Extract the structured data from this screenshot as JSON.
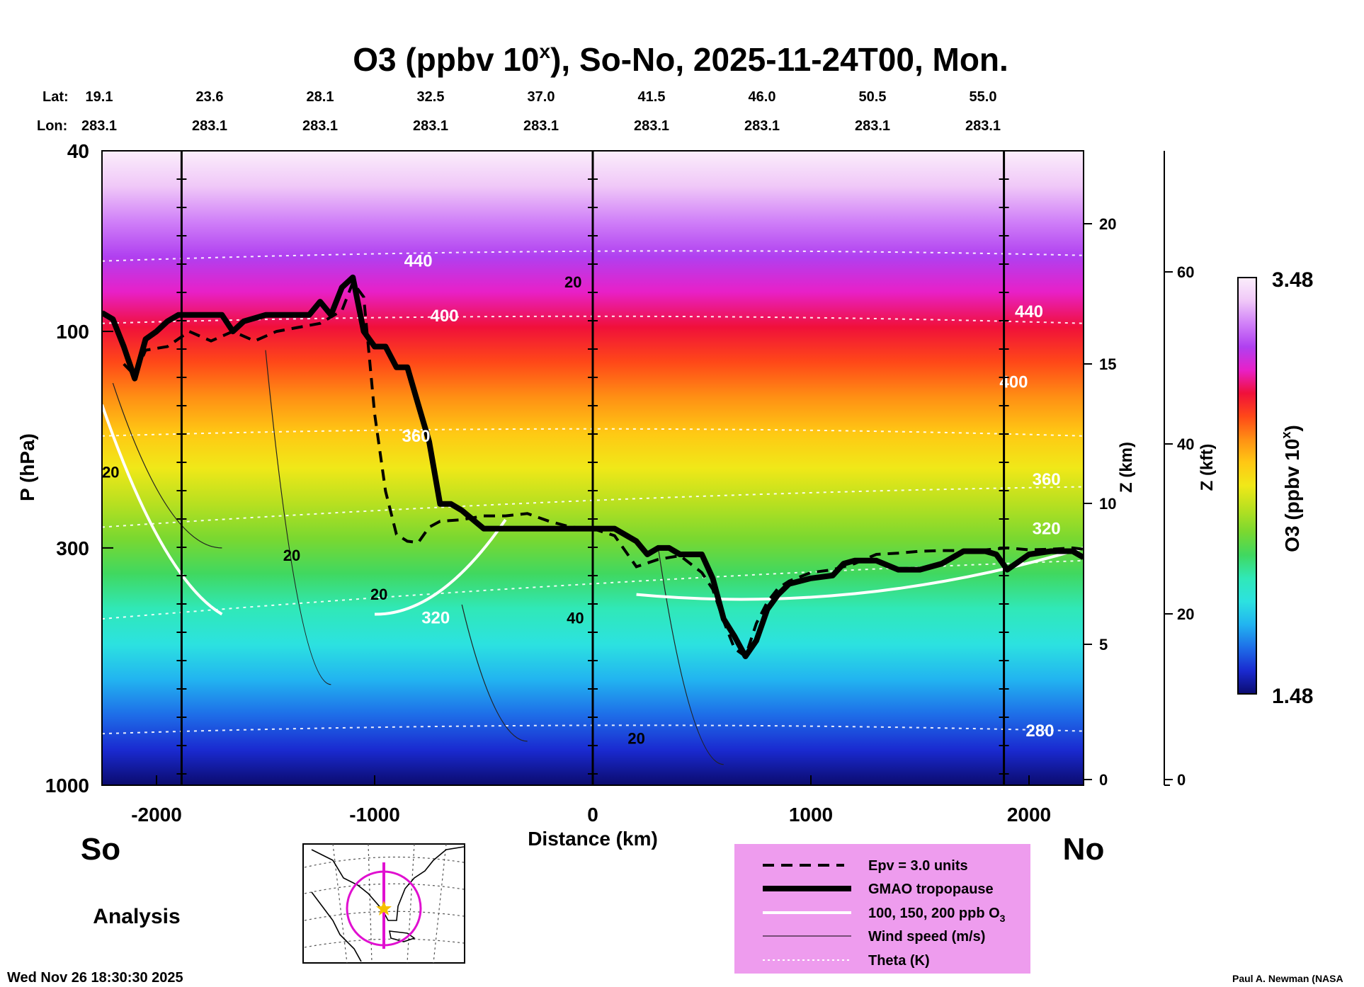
{
  "chart_data": {
    "type": "heatmap",
    "title": "O3 (ppbv 10",
    "title_sup": "x",
    "title_rest": "), So-No, 2025-11-24T00, Mon.",
    "lat_label": "Lat:",
    "lon_label": "Lon:",
    "lats": [
      "19.1",
      "23.6",
      "28.1",
      "32.5",
      "37.0",
      "41.5",
      "46.0",
      "50.5",
      "55.0"
    ],
    "lons": [
      "283.1",
      "283.1",
      "283.1",
      "283.1",
      "283.1",
      "283.1",
      "283.1",
      "283.1",
      "283.1"
    ],
    "xlabel": "Distance (km)",
    "ylabel": "P (hPa)",
    "xlim": [
      -2250,
      2250
    ],
    "x_ticks": [
      -2000,
      -1000,
      0,
      1000,
      2000
    ],
    "x_tick_labels": [
      "-2000",
      "-1000",
      "0",
      "1000",
      "2000"
    ],
    "p_ticks": [
      40,
      100,
      300,
      1000
    ],
    "p_tick_labels": [
      "40",
      "100",
      "300",
      "1000"
    ],
    "z_km_label": "Z (km)",
    "z_km_ticks": [
      "0",
      "5",
      "10",
      "15",
      "20"
    ],
    "z_kft_label": "Z (kft)",
    "z_kft_ticks": [
      "0",
      "20",
      "40",
      "60"
    ],
    "colorbar_label": "O3 (ppbv 10",
    "colorbar_label_sup": "x",
    "colorbar_label_end": ")",
    "colorbar_min": "1.48",
    "colorbar_max": "3.48",
    "colorbar_range": [
      1.48,
      3.48
    ],
    "colorbar_colors": [
      "#0b0b6e",
      "#1a2ad0",
      "#1e6ee8",
      "#22b4f0",
      "#2ce2e0",
      "#30e8b8",
      "#40d860",
      "#7ad830",
      "#b8e020",
      "#f0e818",
      "#ffc814",
      "#ff9014",
      "#ff4818",
      "#f0103a",
      "#e820c8",
      "#b040f0",
      "#d080f8",
      "#f0c8f8",
      "#fbeefb"
    ],
    "south_label": "So",
    "north_label": "No",
    "analysis_label": "Analysis",
    "timestamp": "Wed Nov 26 18:30:30 2025",
    "credit": "Paul A. Newman (NASA",
    "theta_labels": [
      {
        "text": "440",
        "km": -800,
        "p": 72
      },
      {
        "text": "400",
        "km": -680,
        "p": 95
      },
      {
        "text": "360",
        "km": -810,
        "p": 175
      },
      {
        "text": "320",
        "km": -720,
        "p": 440
      },
      {
        "text": "440",
        "km": 2000,
        "p": 93
      },
      {
        "text": "400",
        "km": 1930,
        "p": 133
      },
      {
        "text": "360",
        "km": 2080,
        "p": 218
      },
      {
        "text": "320",
        "km": 2080,
        "p": 280
      },
      {
        "text": "280",
        "km": 2050,
        "p": 780
      }
    ],
    "wind_labels": [
      {
        "text": "20",
        "km": -2210,
        "p": 210
      },
      {
        "text": "20",
        "km": -1380,
        "p": 320
      },
      {
        "text": "20",
        "km": -980,
        "p": 390
      },
      {
        "text": "20",
        "km": -90,
        "p": 80
      },
      {
        "text": "40",
        "km": -80,
        "p": 440
      },
      {
        "text": "20",
        "km": 200,
        "p": 810
      }
    ],
    "tropopause_km": [
      -2250,
      -2200,
      -2150,
      -2100,
      -2050,
      -2000,
      -1950,
      -1900,
      -1850,
      -1800,
      -1700,
      -1650,
      -1600,
      -1500,
      -1400,
      -1350,
      -1300,
      -1250,
      -1200,
      -1150,
      -1100,
      -1050,
      -1000,
      -950,
      -900,
      -850,
      -800,
      -750,
      -700,
      -650,
      -600,
      -500,
      -400,
      -300,
      -200,
      -100,
      0,
      100,
      200,
      250,
      300,
      350,
      400,
      500,
      550,
      600,
      650,
      700,
      750,
      800,
      850,
      900,
      1000,
      1100,
      1150,
      1200,
      1300,
      1400,
      1500,
      1600,
      1700,
      1800,
      1850,
      1900,
      2000,
      2100,
      2200,
      2250
    ],
    "tropopause_p": [
      91,
      94,
      108,
      127,
      104,
      100,
      95,
      92,
      92,
      92,
      92,
      100,
      95,
      92,
      92,
      92,
      92,
      86,
      92,
      80,
      76,
      100,
      108,
      108,
      120,
      120,
      145,
      175,
      240,
      240,
      248,
      272,
      272,
      272,
      272,
      272,
      272,
      272,
      290,
      310,
      300,
      300,
      310,
      310,
      350,
      430,
      470,
      520,
      480,
      410,
      380,
      360,
      350,
      345,
      325,
      320,
      320,
      335,
      335,
      325,
      305,
      305,
      310,
      335,
      310,
      305,
      305,
      315
    ],
    "epv_km": [
      -2150,
      -2100,
      -2050,
      -1950,
      -1850,
      -1750,
      -1650,
      -1550,
      -1450,
      -1350,
      -1250,
      -1150,
      -1100,
      -1050,
      -1000,
      -950,
      -900,
      -850,
      -800,
      -750,
      -700,
      -600,
      -500,
      -400,
      -300,
      -200,
      -100,
      0,
      100,
      150,
      200,
      300,
      400,
      500,
      550,
      600,
      650,
      700,
      750,
      800,
      850,
      900,
      1000,
      1100,
      1200,
      1300,
      1400,
      1500,
      1600,
      1700,
      1800,
      1900,
      2000,
      2100,
      2200,
      2250
    ],
    "epv_p": [
      118,
      125,
      110,
      108,
      100,
      105,
      100,
      105,
      100,
      98,
      96,
      90,
      78,
      84,
      152,
      225,
      280,
      290,
      292,
      270,
      262,
      260,
      255,
      255,
      252,
      262,
      270,
      272,
      282,
      305,
      330,
      318,
      312,
      340,
      370,
      435,
      500,
      520,
      440,
      395,
      368,
      355,
      340,
      335,
      325,
      310,
      308,
      305,
      304,
      304,
      303,
      300,
      303,
      302,
      300,
      302
    ]
  }
}
